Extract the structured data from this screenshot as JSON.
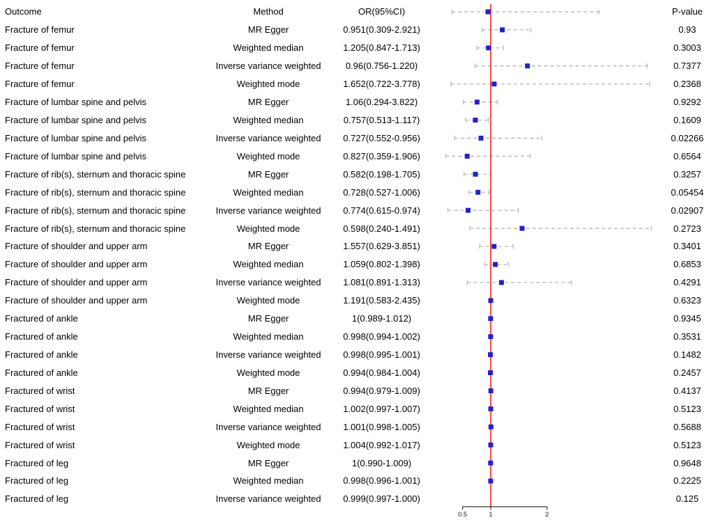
{
  "header": {
    "outcome": "Outcome",
    "method": "Method",
    "or_ci": "OR(95%CI)",
    "pvalue": "P-value"
  },
  "colors": {
    "marker": "#2222cc",
    "ci": "#adadad",
    "ref_line": "#ff0000",
    "axis": "#000000",
    "text": "#000000"
  },
  "chart_data": {
    "type": "forest",
    "x_axis": {
      "scale": "linear",
      "ticks": [
        0.5,
        1,
        2
      ],
      "reference_line": 1,
      "tick_labels": [
        "0.5",
        "1",
        "2"
      ]
    },
    "columns": [
      "Outcome",
      "Method",
      "OR(95%CI)",
      "P-value"
    ],
    "legend": "none",
    "rows": [
      {
        "outcome": "Fracture of femur",
        "method": "MR Egger",
        "or_label": "0.951(0.309-2.921)",
        "or": 0.951,
        "lo": 0.309,
        "hi": 2.921,
        "p": "0.93"
      },
      {
        "outcome": "Fracture of femur",
        "method": "Weighted median",
        "or_label": "1.205(0.847-1.713)",
        "or": 1.205,
        "lo": 0.847,
        "hi": 1.713,
        "p": "0.3003"
      },
      {
        "outcome": "Fracture of femur",
        "method": "Inverse variance weighted",
        "or_label": "0.96(0.756-1.220)",
        "or": 0.96,
        "lo": 0.756,
        "hi": 1.22,
        "p": "0.7377"
      },
      {
        "outcome": "Fracture of femur",
        "method": "Weighted mode",
        "or_label": "1.652(0.722-3.778)",
        "or": 1.652,
        "lo": 0.722,
        "hi": 3.778,
        "p": "0.2368"
      },
      {
        "outcome": "Fracture of lumbar spine and pelvis",
        "method": "MR Egger",
        "or_label": "1.06(0.294-3.822)",
        "or": 1.06,
        "lo": 0.294,
        "hi": 3.822,
        "p": "0.9292"
      },
      {
        "outcome": "Fracture of lumbar spine and pelvis",
        "method": "Weighted median",
        "or_label": "0.757(0.513-1.117)",
        "or": 0.757,
        "lo": 0.513,
        "hi": 1.117,
        "p": "0.1609"
      },
      {
        "outcome": "Fracture of lumbar spine and pelvis",
        "method": "Inverse variance weighted",
        "or_label": "0.727(0.552-0.956)",
        "or": 0.727,
        "lo": 0.552,
        "hi": 0.956,
        "p": "0.02266"
      },
      {
        "outcome": "Fracture of lumbar spine and pelvis",
        "method": "Weighted mode",
        "or_label": "0.827(0.359-1.906)",
        "or": 0.827,
        "lo": 0.359,
        "hi": 1.906,
        "p": "0.6564"
      },
      {
        "outcome": "Fracture of rib(s), sternum and thoracic spine",
        "method": "MR Egger",
        "or_label": "0.582(0.198-1.705)",
        "or": 0.582,
        "lo": 0.198,
        "hi": 1.705,
        "p": "0.3257"
      },
      {
        "outcome": "Fracture of rib(s), sternum and thoracic spine",
        "method": "Weighted median",
        "or_label": "0.728(0.527-1.006)",
        "or": 0.728,
        "lo": 0.527,
        "hi": 1.006,
        "p": "0.05454"
      },
      {
        "outcome": "Fracture of rib(s), sternum and thoracic spine",
        "method": "Inverse variance weighted",
        "or_label": "0.774(0.615-0.974)",
        "or": 0.774,
        "lo": 0.615,
        "hi": 0.974,
        "p": "0.02907"
      },
      {
        "outcome": "Fracture of rib(s), sternum and thoracic spine",
        "method": "Weighted mode",
        "or_label": "0.598(0.240-1.491)",
        "or": 0.598,
        "lo": 0.24,
        "hi": 1.491,
        "p": "0.2723"
      },
      {
        "outcome": "Fracture of shoulder and upper arm",
        "method": "MR Egger",
        "or_label": "1.557(0.629-3.851)",
        "or": 1.557,
        "lo": 0.629,
        "hi": 3.851,
        "p": "0.3401"
      },
      {
        "outcome": "Fracture of shoulder and upper arm",
        "method": "Weighted median",
        "or_label": "1.059(0.802-1.398)",
        "or": 1.059,
        "lo": 0.802,
        "hi": 1.398,
        "p": "0.6853"
      },
      {
        "outcome": "Fracture of shoulder and upper arm",
        "method": "Inverse variance weighted",
        "or_label": "1.081(0.891-1.313)",
        "or": 1.081,
        "lo": 0.891,
        "hi": 1.313,
        "p": "0.4291"
      },
      {
        "outcome": "Fracture of shoulder and upper arm",
        "method": "Weighted mode",
        "or_label": "1.191(0.583-2.435)",
        "or": 1.191,
        "lo": 0.583,
        "hi": 2.435,
        "p": "0.6323"
      },
      {
        "outcome": "Fractured of ankle",
        "method": "MR Egger",
        "or_label": "1(0.989-1.012)",
        "or": 1.0,
        "lo": 0.989,
        "hi": 1.012,
        "p": "0.9345"
      },
      {
        "outcome": "Fractured of ankle",
        "method": "Weighted median",
        "or_label": "0.998(0.994-1.002)",
        "or": 0.998,
        "lo": 0.994,
        "hi": 1.002,
        "p": "0.3531"
      },
      {
        "outcome": "Fractured of ankle",
        "method": "Inverse variance weighted",
        "or_label": "0.998(0.995-1.001)",
        "or": 0.998,
        "lo": 0.995,
        "hi": 1.001,
        "p": "0.1482"
      },
      {
        "outcome": "Fractured of ankle",
        "method": "Weighted mode",
        "or_label": "0.994(0.984-1.004)",
        "or": 0.994,
        "lo": 0.984,
        "hi": 1.004,
        "p": "0.2457"
      },
      {
        "outcome": "Fractured of wrist",
        "method": "MR Egger",
        "or_label": "0.994(0.979-1.009)",
        "or": 0.994,
        "lo": 0.979,
        "hi": 1.009,
        "p": "0.4137"
      },
      {
        "outcome": "Fractured of wrist",
        "method": "Weighted median",
        "or_label": "1.002(0.997-1.007)",
        "or": 1.002,
        "lo": 0.997,
        "hi": 1.007,
        "p": "0.5123"
      },
      {
        "outcome": "Fractured of wrist",
        "method": "Inverse variance weighted",
        "or_label": "1.001(0.998-1.005)",
        "or": 1.001,
        "lo": 0.998,
        "hi": 1.005,
        "p": "0.5688"
      },
      {
        "outcome": "Fractured of wrist",
        "method": "Weighted mode",
        "or_label": "1.004(0.992-1.017)",
        "or": 1.004,
        "lo": 0.992,
        "hi": 1.017,
        "p": "0.5123"
      },
      {
        "outcome": "Fractured of leg",
        "method": "MR Egger",
        "or_label": "1(0.990-1.009)",
        "or": 1.0,
        "lo": 0.99,
        "hi": 1.009,
        "p": "0.9648"
      },
      {
        "outcome": "Fractured of leg",
        "method": "Weighted median",
        "or_label": "0.998(0.996-1.001)",
        "or": 0.998,
        "lo": 0.996,
        "hi": 1.001,
        "p": "0.2225"
      },
      {
        "outcome": "Fractured of leg",
        "method": "Inverse variance weighted",
        "or_label": "0.999(0.997-1.000)",
        "or": 0.999,
        "lo": 0.997,
        "hi": 1.0,
        "p": "0.125"
      }
    ]
  }
}
